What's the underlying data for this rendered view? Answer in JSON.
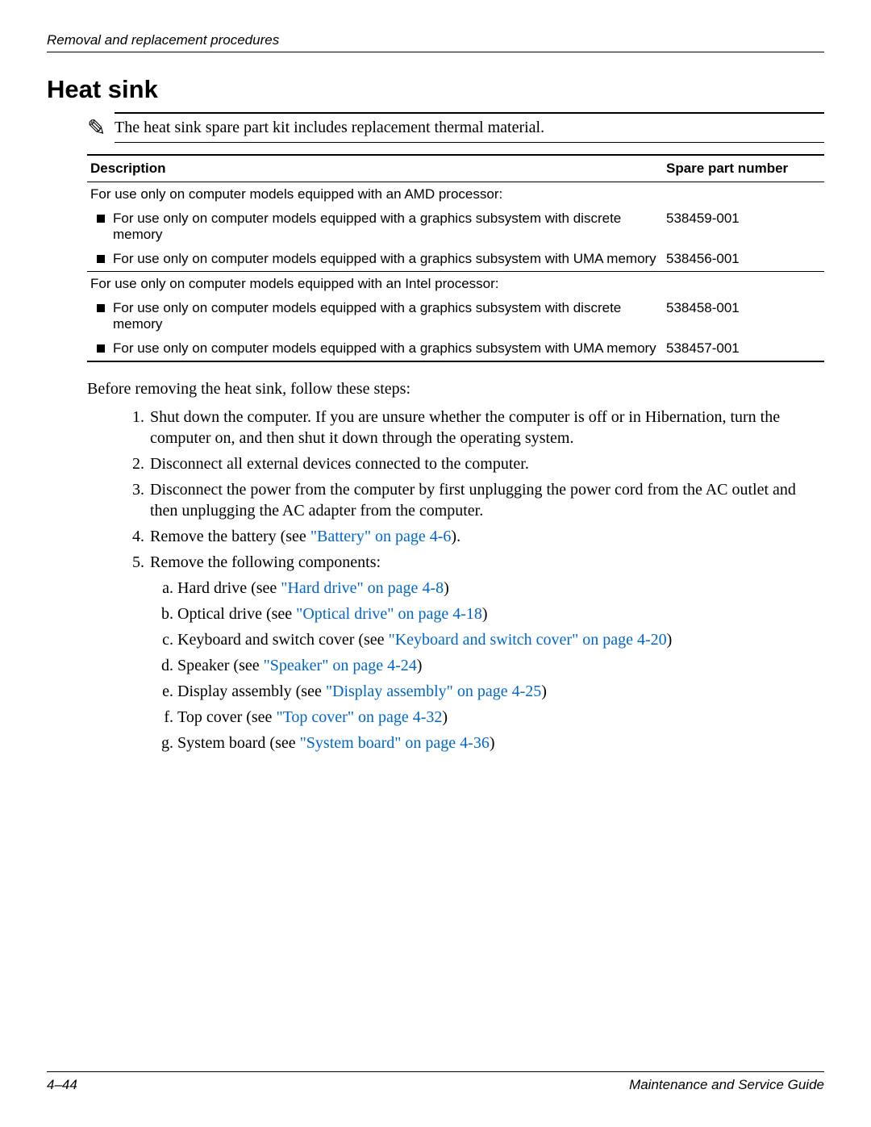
{
  "header": {
    "running_title": "Removal and replacement procedures"
  },
  "title": "Heat sink",
  "note": {
    "icon": "✎",
    "text": "The heat sink spare part kit includes replacement thermal material."
  },
  "table": {
    "columns": {
      "description": "Description",
      "spare_part_number": "Spare part number"
    },
    "groups": [
      {
        "header": "For use only on computer models equipped with an AMD processor:",
        "rows": [
          {
            "desc": "For use only on computer models equipped with a graphics subsystem with discrete memory",
            "spn": "538459-001"
          },
          {
            "desc": "For use only on computer models equipped with a graphics subsystem with UMA memory",
            "spn": "538456-001"
          }
        ]
      },
      {
        "header": "For use only on computer models equipped with an Intel processor:",
        "rows": [
          {
            "desc": "For use only on computer models equipped with a graphics subsystem with discrete memory",
            "spn": "538458-001"
          },
          {
            "desc": "For use only on computer models equipped with a graphics subsystem with UMA memory",
            "spn": "538457-001"
          }
        ]
      }
    ]
  },
  "intro": "Before removing the heat sink, follow these steps:",
  "steps": [
    {
      "text": "Shut down the computer. If you are unsure whether the computer is off or in Hibernation, turn the computer on, and then shut it down through the operating system."
    },
    {
      "text": "Disconnect all external devices connected to the computer."
    },
    {
      "text": "Disconnect the power from the computer by first unplugging the power cord from the AC outlet and then unplugging the AC adapter from the computer."
    },
    {
      "pre": "Remove the battery (see ",
      "link": "\"Battery\" on page 4-6",
      "post": ")."
    },
    {
      "text": "Remove the following components:",
      "sub": [
        {
          "pre": "Hard drive (see ",
          "link": "\"Hard drive\" on page 4-8",
          "post": ")"
        },
        {
          "pre": "Optical drive (see ",
          "link": "\"Optical drive\" on page 4-18",
          "post": ")"
        },
        {
          "pre": "Keyboard and switch cover (see ",
          "link": "\"Keyboard and switch cover\" on page 4-20",
          "post": ")"
        },
        {
          "pre": "Speaker (see ",
          "link": "\"Speaker\" on page 4-24",
          "post": ")"
        },
        {
          "pre": "Display assembly (see ",
          "link": "\"Display assembly\" on page 4-25",
          "post": ")"
        },
        {
          "pre": "Top cover (see ",
          "link": "\"Top cover\" on page 4-32",
          "post": ")"
        },
        {
          "pre": "System board (see ",
          "link": "\"System board\" on page 4-36",
          "post": ")"
        }
      ]
    }
  ],
  "footer": {
    "page": "4–44",
    "doc": "Maintenance and Service Guide"
  },
  "style": {
    "link_color": "#0066cc",
    "text_color": "#000000",
    "background": "#ffffff"
  }
}
